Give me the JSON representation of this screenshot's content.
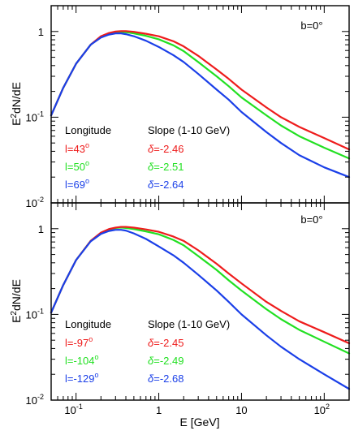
{
  "colors": {
    "red": "#ee1c1c",
    "green": "#22e022",
    "blue": "#1a3fe8"
  },
  "chart_data": [
    {
      "type": "line",
      "xscale": "log",
      "yscale": "log",
      "xlim": [
        0.05,
        200
      ],
      "ylim": [
        0.01,
        2
      ],
      "xlabel": "",
      "ylabel": "E²dN/dE",
      "ylabel_main": "E",
      "ylabel_sup": "2",
      "ylabel_rest": "dN/dE",
      "annotation": "b=0°",
      "legend_header": {
        "left": "Longitude",
        "right": "Slope (1-10 GeV)"
      },
      "x": [
        0.05,
        0.07,
        0.1,
        0.15,
        0.2,
        0.25,
        0.3,
        0.35,
        0.4,
        0.5,
        0.7,
        1,
        1.5,
        2,
        3,
        5,
        7,
        10,
        20,
        30,
        50,
        100,
        200
      ],
      "yticks": [
        {
          "value": 1,
          "base": "1",
          "exp": ""
        },
        {
          "value": 0.1,
          "base": "10",
          "exp": "-1"
        },
        {
          "value": 0.01,
          "base": "10",
          "exp": "-2"
        }
      ],
      "series": [
        {
          "name": "l=43°",
          "label_main": "l=43",
          "label_deg": "o",
          "slope": "δ=-2.46",
          "slope_sym": "δ",
          "slope_val": "=-2.46",
          "color": "#ee1c1c",
          "values": [
            0.105,
            0.22,
            0.42,
            0.7,
            0.88,
            0.96,
            1.0,
            1.01,
            1.01,
            0.99,
            0.94,
            0.88,
            0.77,
            0.67,
            0.52,
            0.36,
            0.28,
            0.21,
            0.13,
            0.1,
            0.077,
            0.057,
            0.042
          ]
        },
        {
          "name": "l=50°",
          "label_main": "l=50",
          "label_deg": "o",
          "slope": "δ=-2.51",
          "slope_sym": "δ",
          "slope_val": "=-2.51",
          "color": "#22e022",
          "values": [
            0.105,
            0.22,
            0.42,
            0.7,
            0.87,
            0.95,
            0.98,
            0.99,
            0.98,
            0.95,
            0.89,
            0.81,
            0.69,
            0.59,
            0.44,
            0.3,
            0.23,
            0.17,
            0.105,
            0.08,
            0.06,
            0.044,
            0.033
          ]
        },
        {
          "name": "l=69°",
          "label_main": "l=69",
          "label_deg": "o",
          "slope": "δ=-2.64",
          "slope_sym": "δ",
          "slope_val": "=-2.64",
          "color": "#1a3fe8",
          "values": [
            0.105,
            0.22,
            0.42,
            0.7,
            0.85,
            0.92,
            0.95,
            0.95,
            0.93,
            0.88,
            0.78,
            0.66,
            0.53,
            0.44,
            0.32,
            0.21,
            0.16,
            0.115,
            0.067,
            0.05,
            0.036,
            0.026,
            0.02
          ]
        }
      ]
    },
    {
      "type": "line",
      "xscale": "log",
      "yscale": "log",
      "xlim": [
        0.05,
        200
      ],
      "ylim": [
        0.01,
        2
      ],
      "xlabel": "E [GeV]",
      "ylabel": "E²dN/dE",
      "ylabel_main": "E",
      "ylabel_sup": "2",
      "ylabel_rest": "dN/dE",
      "annotation": "b=0°",
      "legend_header": {
        "left": "Longitude",
        "right": "Slope (1-10 GeV)"
      },
      "x": [
        0.05,
        0.07,
        0.1,
        0.15,
        0.2,
        0.25,
        0.3,
        0.35,
        0.4,
        0.5,
        0.7,
        1,
        1.5,
        2,
        3,
        5,
        7,
        10,
        20,
        30,
        50,
        100,
        200
      ],
      "xticks": [
        {
          "value": 0.1,
          "base": "10",
          "exp": "-1"
        },
        {
          "value": 1,
          "base": "1",
          "exp": ""
        },
        {
          "value": 10,
          "base": "10",
          "exp": ""
        },
        {
          "value": 100,
          "base": "10",
          "exp": "2"
        }
      ],
      "yticks": [
        {
          "value": 1,
          "base": "1",
          "exp": ""
        },
        {
          "value": 0.1,
          "base": "10",
          "exp": "-1"
        },
        {
          "value": 0.01,
          "base": "10",
          "exp": "-2"
        }
      ],
      "series": [
        {
          "name": "l=-97°",
          "label_main": "l=-97",
          "label_deg": "o",
          "slope": "δ=-2.45",
          "slope_sym": "δ",
          "slope_val": "=-2.45",
          "color": "#ee1c1c",
          "values": [
            0.105,
            0.22,
            0.43,
            0.72,
            0.9,
            0.99,
            1.03,
            1.05,
            1.05,
            1.03,
            0.98,
            0.92,
            0.81,
            0.72,
            0.56,
            0.39,
            0.3,
            0.23,
            0.14,
            0.11,
            0.083,
            0.062,
            0.046
          ]
        },
        {
          "name": "l=-104°",
          "label_main": "l=-104",
          "label_deg": "o",
          "slope": "δ=-2.49",
          "slope_sym": "δ",
          "slope_val": "=-2.49",
          "color": "#22e022",
          "values": [
            0.105,
            0.22,
            0.43,
            0.72,
            0.89,
            0.98,
            1.02,
            1.03,
            1.02,
            0.99,
            0.93,
            0.86,
            0.74,
            0.64,
            0.48,
            0.33,
            0.25,
            0.19,
            0.115,
            0.088,
            0.066,
            0.048,
            0.035
          ]
        },
        {
          "name": "l=-129°",
          "label_main": "l=-129",
          "label_deg": "o",
          "slope": "δ=-2.68",
          "slope_sym": "δ",
          "slope_val": "=-2.68",
          "color": "#1a3fe8",
          "values": [
            0.105,
            0.22,
            0.43,
            0.71,
            0.87,
            0.94,
            0.97,
            0.97,
            0.95,
            0.88,
            0.76,
            0.62,
            0.49,
            0.4,
            0.29,
            0.19,
            0.14,
            0.1,
            0.057,
            0.042,
            0.03,
            0.02,
            0.0135
          ]
        }
      ]
    }
  ]
}
